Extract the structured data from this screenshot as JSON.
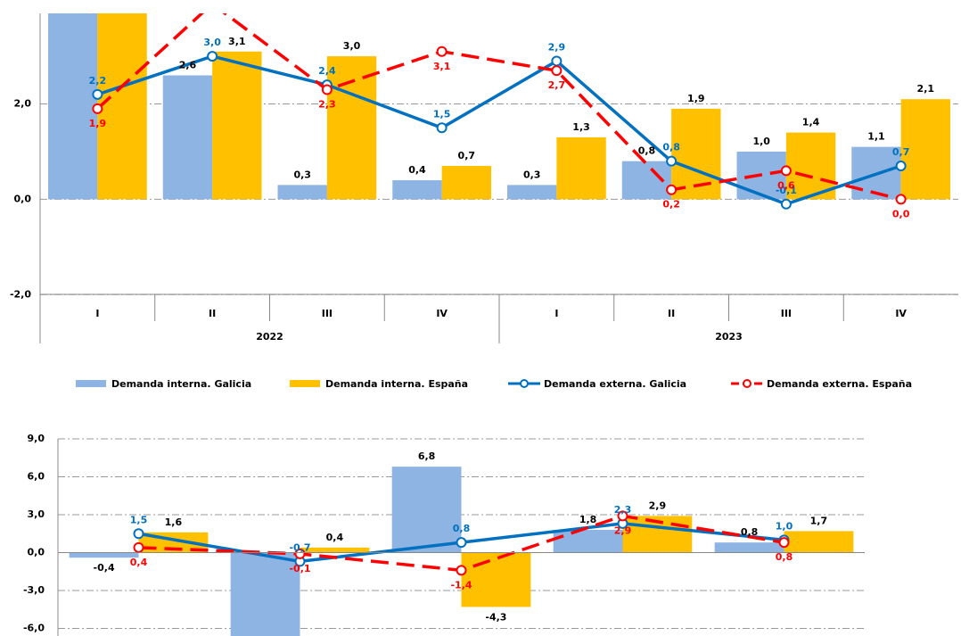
{
  "chart_data": [
    {
      "type": "bar-line",
      "categories": [
        "I",
        "II",
        "III",
        "IV",
        "I",
        "II",
        "III",
        "IV"
      ],
      "x_groups": [
        "2022",
        "2023"
      ],
      "ylim": [
        -2.2,
        3.9
      ],
      "yticks": [
        {
          "value": -2,
          "label": "-2,0"
        },
        {
          "value": 0,
          "label": "0,0"
        },
        {
          "value": 2,
          "label": "2,0"
        }
      ],
      "grid": true,
      "series": [
        {
          "name": "Demanda interna. Galicia",
          "kind": "bar",
          "color": "#8eb4e3",
          "values": [
            4.5,
            2.6,
            0.3,
            0.4,
            0.3,
            0.8,
            1.0,
            1.1
          ],
          "value_labels": [
            null,
            "2,6",
            "0,3",
            "0,4",
            "0,3",
            "0,8",
            "1,0",
            "1,1"
          ]
        },
        {
          "name": "Demanda interna. España",
          "kind": "bar",
          "color": "#ffc000",
          "values": [
            4.8,
            3.1,
            3.0,
            0.7,
            1.3,
            1.9,
            1.4,
            2.1
          ],
          "value_labels": [
            null,
            "3,1",
            "3,0",
            "0,7",
            "1,3",
            "1,9",
            "1,4",
            "2,1"
          ]
        },
        {
          "name": "Demanda externa. Galicia",
          "kind": "line",
          "color": "#0070c0",
          "values": [
            2.2,
            3.0,
            2.4,
            1.5,
            2.9,
            0.8,
            -0.1,
            0.7
          ],
          "value_labels": [
            "2,2",
            "3,0",
            "2,4",
            "1,5",
            "2,9",
            "0,8",
            "-0,1",
            "0,7"
          ]
        },
        {
          "name": "Demanda externa. España",
          "kind": "line",
          "dashed": true,
          "color": "#ff0000",
          "values": [
            1.9,
            4.1,
            2.3,
            3.1,
            2.7,
            0.2,
            0.6,
            0.0
          ],
          "value_labels": [
            "1,9",
            null,
            "2,3",
            "3,1",
            "2,7",
            "0,2",
            "0,6",
            "0,0"
          ]
        }
      ]
    },
    {
      "type": "bar-line",
      "categories": [
        null,
        null,
        null,
        null,
        null
      ],
      "ylim": [
        -6.6,
        9.0
      ],
      "yticks": [
        {
          "value": -6,
          "label": "-6,0"
        },
        {
          "value": -3,
          "label": "-3,0"
        },
        {
          "value": 0,
          "label": "0,0"
        },
        {
          "value": 3,
          "label": "3,0"
        },
        {
          "value": 6,
          "label": "6,0"
        },
        {
          "value": 9,
          "label": "9,0"
        }
      ],
      "grid": true,
      "series": [
        {
          "kind": "bar",
          "color": "#8eb4e3",
          "values": [
            -0.4,
            -8.0,
            6.8,
            1.8,
            0.8
          ],
          "value_labels": [
            "-0,4",
            null,
            "6,8",
            "1,8",
            "0,8"
          ]
        },
        {
          "kind": "bar",
          "color": "#ffc000",
          "values": [
            1.6,
            0.4,
            -4.3,
            2.9,
            1.7
          ],
          "value_labels": [
            "1,6",
            "0,4",
            "-4,3",
            "2,9",
            "1,7"
          ]
        },
        {
          "kind": "line",
          "color": "#0070c0",
          "values": [
            1.5,
            -0.7,
            0.8,
            2.3,
            1.0
          ],
          "value_labels": [
            "1,5",
            "-0,7",
            "0,8",
            "2,3",
            "1,0"
          ]
        },
        {
          "kind": "line",
          "dashed": true,
          "color": "#ff0000",
          "values": [
            0.4,
            -0.1,
            -1.4,
            2.9,
            0.8
          ],
          "value_labels": [
            "0,4",
            "-0,1",
            "-1,4",
            "2,9",
            "0,8"
          ]
        }
      ]
    }
  ]
}
